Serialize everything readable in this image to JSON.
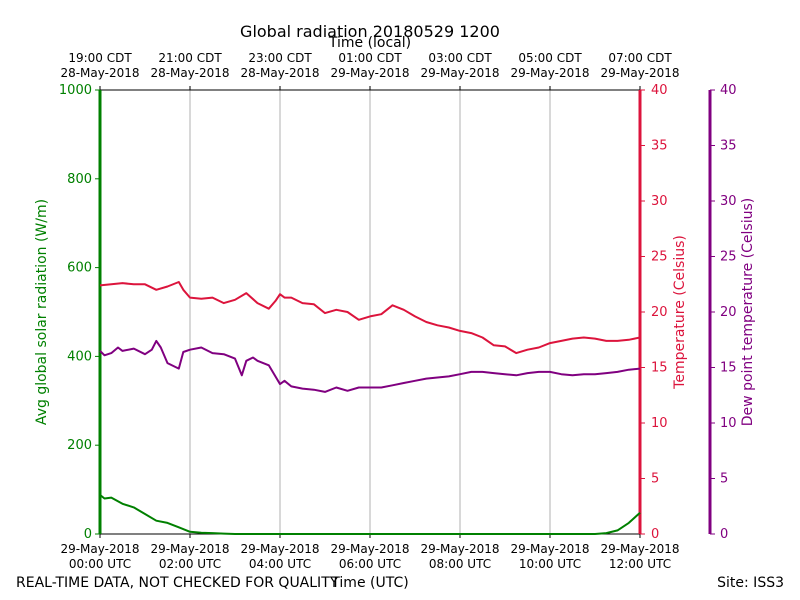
{
  "chart_data": {
    "type": "line",
    "title": "Global radiation 20180529 1200",
    "top_axis_label": "Time (local)",
    "xlabel": "Time (UTC)",
    "ylabel_left": "Avg global solar radiation (W/m)",
    "ylabel_right": "Temperature (Celsius)",
    "ylabel_far_right": "Dew point temperature (Celsius)",
    "footer_left": "REAL-TIME DATA, NOT CHECKED FOR QUALITY",
    "footer_right": "Site: ISS3",
    "x_range_hours": [
      0,
      12
    ],
    "ylim_left": [
      0,
      1000
    ],
    "ylim_right": [
      0,
      40
    ],
    "ylim_far_right": [
      0,
      40
    ],
    "y_ticks_left": [
      "0",
      "200",
      "400",
      "600",
      "800",
      "1000"
    ],
    "y_ticks_right": [
      "0",
      "5",
      "10",
      "15",
      "20",
      "25",
      "30",
      "35",
      "40"
    ],
    "y_ticks_far_right": [
      "0",
      "5",
      "10",
      "15",
      "20",
      "25",
      "30",
      "35",
      "40"
    ],
    "grid": "vertical",
    "x_ticks_utc": [
      {
        "hour": 0,
        "date": "29-May-2018",
        "time": "00:00 UTC"
      },
      {
        "hour": 2,
        "date": "29-May-2018",
        "time": "02:00 UTC"
      },
      {
        "hour": 4,
        "date": "29-May-2018",
        "time": "04:00 UTC"
      },
      {
        "hour": 6,
        "date": "29-May-2018",
        "time": "06:00 UTC"
      },
      {
        "hour": 8,
        "date": "29-May-2018",
        "time": "08:00 UTC"
      },
      {
        "hour": 10,
        "date": "29-May-2018",
        "time": "10:00 UTC"
      },
      {
        "hour": 12,
        "date": "29-May-2018",
        "time": "12:00 UTC"
      }
    ],
    "x_ticks_local": [
      {
        "hour": 0,
        "time": "19:00 CDT",
        "date": "28-May-2018"
      },
      {
        "hour": 2,
        "time": "21:00 CDT",
        "date": "28-May-2018"
      },
      {
        "hour": 4,
        "time": "23:00 CDT",
        "date": "28-May-2018"
      },
      {
        "hour": 6,
        "time": "01:00 CDT",
        "date": "29-May-2018"
      },
      {
        "hour": 8,
        "time": "03:00 CDT",
        "date": "29-May-2018"
      },
      {
        "hour": 10,
        "time": "05:00 CDT",
        "date": "29-May-2018"
      },
      {
        "hour": 12,
        "time": "07:00 CDT",
        "date": "29-May-2018"
      }
    ],
    "series": [
      {
        "name": "Avg global solar radiation",
        "axis": "left",
        "color": "#008000",
        "x": [
          0,
          0.1,
          0.25,
          0.5,
          0.75,
          1.0,
          1.25,
          1.5,
          1.75,
          2.0,
          2.25,
          2.5,
          2.75,
          3.0,
          4.0,
          5.0,
          6.0,
          7.0,
          8.0,
          9.0,
          10.0,
          11.0,
          11.25,
          11.5,
          11.75,
          12.0
        ],
        "values": [
          88,
          80,
          82,
          68,
          60,
          45,
          30,
          25,
          15,
          5,
          3,
          2,
          1,
          0,
          0,
          0,
          0,
          0,
          0,
          0,
          0,
          0,
          2,
          8,
          25,
          48
        ]
      },
      {
        "name": "Temperature",
        "axis": "right",
        "color": "#dc143c",
        "x": [
          0,
          0.25,
          0.5,
          0.75,
          1.0,
          1.25,
          1.5,
          1.75,
          1.85,
          2.0,
          2.25,
          2.5,
          2.75,
          3.0,
          3.25,
          3.5,
          3.75,
          3.9,
          4.0,
          4.1,
          4.25,
          4.5,
          4.75,
          5.0,
          5.25,
          5.5,
          5.75,
          6.0,
          6.25,
          6.5,
          6.75,
          7.0,
          7.25,
          7.5,
          7.75,
          8.0,
          8.25,
          8.5,
          8.75,
          9.0,
          9.25,
          9.5,
          9.75,
          10.0,
          10.25,
          10.5,
          10.75,
          11.0,
          11.25,
          11.5,
          11.75,
          12.0
        ],
        "values": [
          22.4,
          22.5,
          22.6,
          22.5,
          22.5,
          22.0,
          22.3,
          22.7,
          22.0,
          21.3,
          21.2,
          21.3,
          20.8,
          21.1,
          21.7,
          20.8,
          20.3,
          21.0,
          21.6,
          21.3,
          21.3,
          20.8,
          20.7,
          19.9,
          20.2,
          20.0,
          19.3,
          19.6,
          19.8,
          20.6,
          20.2,
          19.6,
          19.1,
          18.8,
          18.6,
          18.3,
          18.1,
          17.7,
          17.0,
          16.9,
          16.3,
          16.6,
          16.8,
          17.2,
          17.4,
          17.6,
          17.7,
          17.6,
          17.4,
          17.4,
          17.5,
          17.7
        ]
      },
      {
        "name": "Dew point temperature",
        "axis": "far_right",
        "color": "#800080",
        "x": [
          0,
          0.1,
          0.25,
          0.4,
          0.5,
          0.75,
          1.0,
          1.15,
          1.25,
          1.35,
          1.5,
          1.75,
          1.85,
          2.0,
          2.25,
          2.5,
          2.75,
          3.0,
          3.15,
          3.25,
          3.4,
          3.5,
          3.75,
          4.0,
          4.1,
          4.25,
          4.5,
          4.75,
          5.0,
          5.25,
          5.5,
          5.75,
          6.0,
          6.25,
          6.5,
          6.75,
          7.0,
          7.25,
          7.5,
          7.75,
          8.0,
          8.25,
          8.5,
          8.75,
          9.0,
          9.25,
          9.5,
          9.75,
          10.0,
          10.25,
          10.5,
          10.75,
          11.0,
          11.25,
          11.5,
          11.75,
          12.0
        ],
        "values": [
          16.5,
          16.1,
          16.3,
          16.8,
          16.5,
          16.7,
          16.2,
          16.6,
          17.4,
          16.8,
          15.4,
          14.9,
          16.4,
          16.6,
          16.8,
          16.3,
          16.2,
          15.8,
          14.3,
          15.6,
          15.9,
          15.6,
          15.2,
          13.5,
          13.8,
          13.3,
          13.1,
          13.0,
          12.8,
          13.2,
          12.9,
          13.2,
          13.2,
          13.2,
          13.4,
          13.6,
          13.8,
          14.0,
          14.1,
          14.2,
          14.4,
          14.6,
          14.6,
          14.5,
          14.4,
          14.3,
          14.5,
          14.6,
          14.6,
          14.4,
          14.3,
          14.4,
          14.4,
          14.5,
          14.6,
          14.8,
          14.9
        ]
      }
    ]
  }
}
